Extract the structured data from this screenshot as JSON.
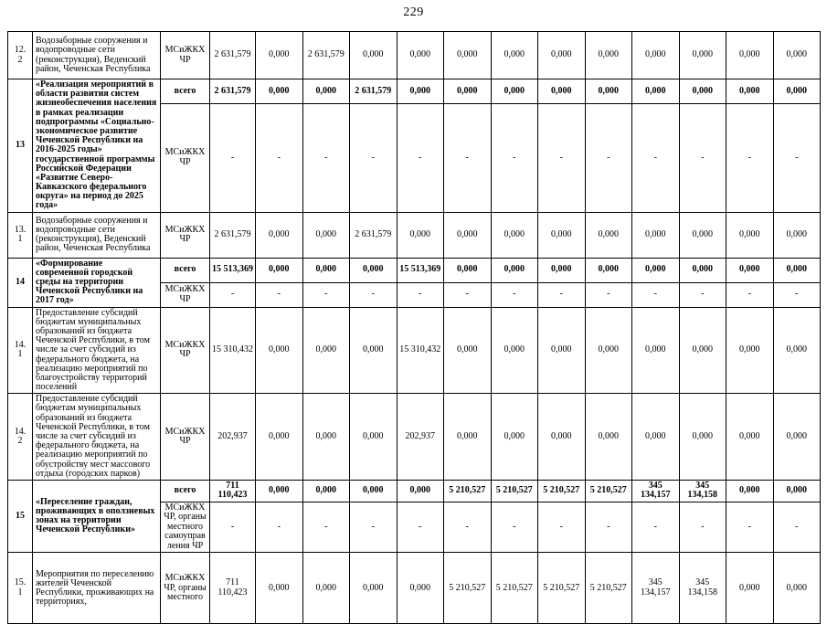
{
  "page_number": "229",
  "table": {
    "rows": [
      {
        "num": "12.\n2",
        "bold": false,
        "desc": "Водозаборные сооружения и водопроводные сети (реконструкция), Веденский район, Чеченская  Республика",
        "sub": [
          {
            "executor": "МСиЖКХ ЧР",
            "bold": false,
            "values": [
              "2 631,579",
              "0,000",
              "2 631,579",
              "0,000",
              "0,000",
              "0,000",
              "0,000",
              "0,000",
              "0,000",
              "0,000",
              "0,000",
              "0,000",
              "0,000"
            ]
          }
        ]
      },
      {
        "num": "13",
        "bold": true,
        "desc": "«Реализация мероприятий в области развития систем жизнеобеспечения населения в рамках реализации подпрограммы «Социально-экономическое развитие Чеченской Республики на 2016-2025 годы» государственной программы Российской Федерации «Развитие Северо-Кавказского федерального округа» на период до 2025 года»",
        "sub": [
          {
            "executor": "всего",
            "bold": true,
            "values": [
              "2 631,579",
              "0,000",
              "0,000",
              "2 631,579",
              "0,000",
              "0,000",
              "0,000",
              "0,000",
              "0,000",
              "0,000",
              "0,000",
              "0,000",
              "0,000"
            ]
          },
          {
            "executor": "МСиЖКХ ЧР",
            "bold": false,
            "values": [
              "-",
              "-",
              "-",
              "-",
              "-",
              "-",
              "-",
              "-",
              "-",
              "-",
              "-",
              "-",
              "-"
            ]
          }
        ]
      },
      {
        "num": "13.\n1",
        "bold": false,
        "desc": "Водозаборные сооружения и водопроводные сети (реконструкция), Веденский район, Чеченская  Республика",
        "sub": [
          {
            "executor": "МСиЖКХ ЧР",
            "bold": false,
            "values": [
              "2 631,579",
              "0,000",
              "0,000",
              "2 631,579",
              "0,000",
              "0,000",
              "0,000",
              "0,000",
              "0,000",
              "0,000",
              "0,000",
              "0,000",
              "0,000"
            ]
          }
        ]
      },
      {
        "num": "14",
        "bold": true,
        "desc": "«Формирование современной городской среды на территории Чеченской Республики на 2017 год»",
        "sub": [
          {
            "executor": "всего",
            "bold": true,
            "values": [
              "15 513,369",
              "0,000",
              "0,000",
              "0,000",
              "15 513,369",
              "0,000",
              "0,000",
              "0,000",
              "0,000",
              "0,000",
              "0,000",
              "0,000",
              "0,000"
            ]
          },
          {
            "executor": "МСиЖКХ ЧР",
            "bold": false,
            "values": [
              "-",
              "-",
              "-",
              "-",
              "-",
              "-",
              "-",
              "-",
              "-",
              "-",
              "-",
              "-",
              "-"
            ]
          }
        ]
      },
      {
        "num": "14.\n1",
        "bold": false,
        "desc": "Предоставление субсидий бюджетам муниципальных образований из бюджета Чеченской Республики, в том числе за счет субсидий из федерального бюджета, на реализацию мероприятий по благоустройству территорий поселений",
        "sub": [
          {
            "executor": "МСиЖКХ ЧР",
            "bold": false,
            "values": [
              "15 310,432",
              "0,000",
              "0,000",
              "0,000",
              "15 310,432",
              "0,000",
              "0,000",
              "0,000",
              "0,000",
              "0,000",
              "0,000",
              "0,000",
              "0,000"
            ]
          }
        ]
      },
      {
        "num": "14.\n2",
        "bold": false,
        "desc": "Предоставление субсидий бюджетам муниципальных образований из бюджета Чеченской Республики, в том числе за счет субсидий из федерального бюджета, на реализацию мероприятий по обустройству мест массового отдыха (городских парков)",
        "sub": [
          {
            "executor": "МСиЖКХ ЧР",
            "bold": false,
            "values": [
              "202,937",
              "0,000",
              "0,000",
              "0,000",
              "202,937",
              "0,000",
              "0,000",
              "0,000",
              "0,000",
              "0,000",
              "0,000",
              "0,000",
              "0,000"
            ]
          }
        ]
      },
      {
        "num": "15",
        "bold": true,
        "desc": "«Переселение граждан, проживающих в оползневых зонах на территории Чеченской Республики»",
        "sub": [
          {
            "executor": "всего",
            "bold": true,
            "values": [
              "711 110,423",
              "0,000",
              "0,000",
              "0,000",
              "0,000",
              "5 210,527",
              "5 210,527",
              "5 210,527",
              "5 210,527",
              "345 134,157",
              "345 134,158",
              "0,000",
              "0,000"
            ]
          },
          {
            "executor": "МСиЖКХ ЧР, органы местного самоуправ ления ЧР",
            "bold": false,
            "values": [
              "-",
              "-",
              "-",
              "-",
              "-",
              "-",
              "-",
              "-",
              "-",
              "-",
              "-",
              "-",
              "-"
            ]
          }
        ]
      },
      {
        "num": "15.\n1",
        "bold": false,
        "desc": "Мероприятия по переселению жителей Чеченской Республики, проживающих на территориях,",
        "sub": [
          {
            "executor": "МСиЖКХ ЧР, органы местного",
            "bold": false,
            "values": [
              "711 110,423",
              "0,000",
              "0,000",
              "0,000",
              "0,000",
              "5 210,527",
              "5 210,527",
              "5 210,527",
              "5 210,527",
              "345 134,157",
              "345 134,158",
              "0,000",
              "0,000"
            ]
          }
        ]
      }
    ]
  }
}
